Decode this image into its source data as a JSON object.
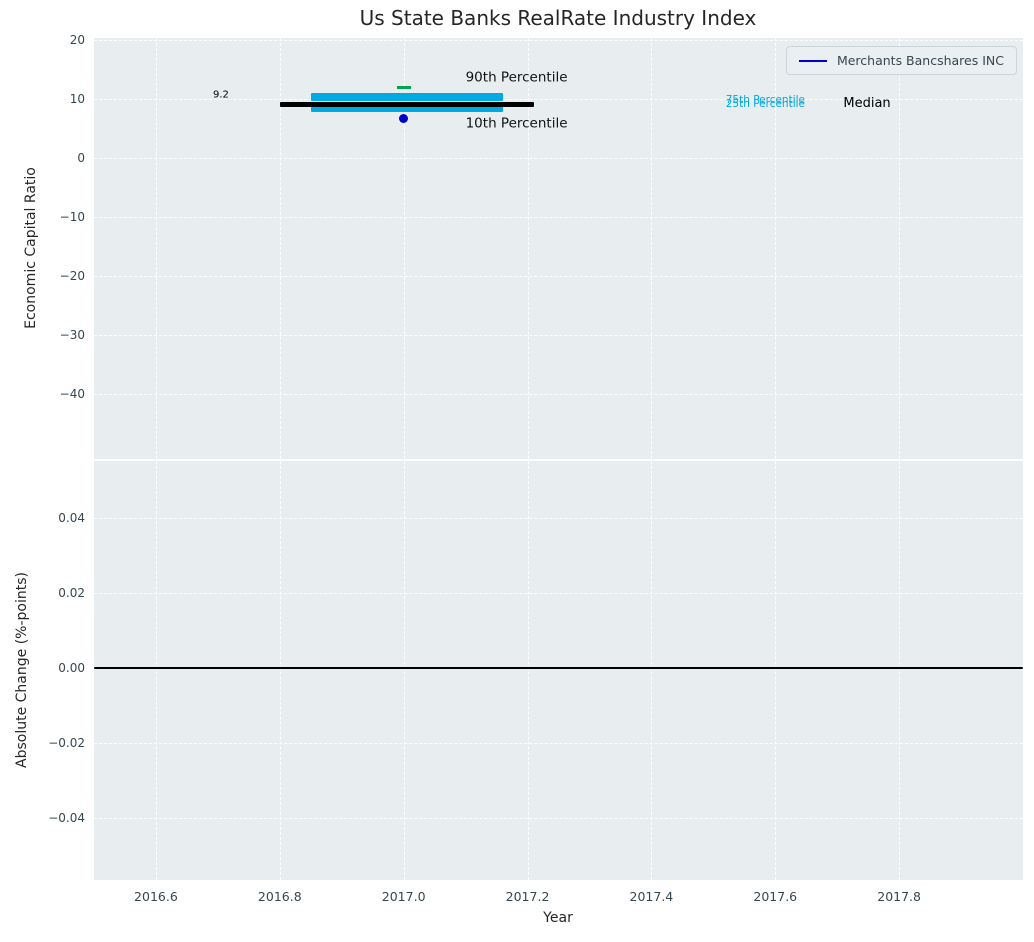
{
  "title": "Us State Banks RealRate Industry Index",
  "legend": {
    "label": "Merchants Bancshares INC",
    "line_color": "#0000cd"
  },
  "colors": {
    "figure_bg": "#ffffff",
    "axes_bg": "#e8edef",
    "grid": "#ffffff",
    "tick_label": "#37474f",
    "title_text": "#262626",
    "percentile_band": "#00a9e0",
    "percentile_90_marker": "#00a550",
    "company_marker": "#0000cd",
    "median_line": "#000000"
  },
  "chart_data": [
    {
      "type": "line",
      "title": "Us State Banks RealRate Industry Index",
      "xlabel": "Year",
      "ylabel": "Economic Capital Ratio",
      "xlim": [
        2016.5,
        2018.0
      ],
      "ylim": [
        -51,
        20.4
      ],
      "grid": true,
      "legend_position": "upper right",
      "show_xtick_labels": false,
      "xticks": [
        {
          "v": 2016.6,
          "label": "2016.6"
        },
        {
          "v": 2016.8,
          "label": "2016.8"
        },
        {
          "v": 2017.0,
          "label": "2017.0"
        },
        {
          "v": 2017.2,
          "label": "2017.2"
        },
        {
          "v": 2017.4,
          "label": "2017.4"
        },
        {
          "v": 2017.6,
          "label": "2017.6"
        },
        {
          "v": 2017.8,
          "label": "2017.8"
        }
      ],
      "yticks": [
        {
          "v": 20,
          "label": "20"
        },
        {
          "v": 10,
          "label": "10"
        },
        {
          "v": 0,
          "label": "0"
        },
        {
          "v": -10,
          "label": "−10"
        },
        {
          "v": -20,
          "label": "−20"
        },
        {
          "v": -30,
          "label": "−30"
        },
        {
          "v": -40,
          "label": "−40"
        }
      ],
      "series": [
        {
          "name": "75th Percentile",
          "style": "thick-hline",
          "color": "#00a9e0",
          "x": [
            2016.85,
            2017.16
          ],
          "y": 10.4,
          "lw": 8
        },
        {
          "name": "25th Percentile",
          "style": "thick-hline",
          "color": "#00a9e0",
          "x": [
            2016.85,
            2017.16
          ],
          "y": 8.6,
          "lw": 8
        },
        {
          "name": "Median",
          "style": "thick-hline",
          "color": "#000000",
          "x": [
            2016.8,
            2017.21
          ],
          "y": 9.2,
          "lw": 5
        },
        {
          "name": "90th Percentile",
          "style": "tick-marker",
          "color": "#00a550",
          "x": 2017.0,
          "y": 12.0,
          "w": 14,
          "lw": 2.5
        },
        {
          "name": "Merchants Bancshares INC",
          "style": "dot-marker",
          "color": "#0000cd",
          "x": 2017.0,
          "y": 6.8,
          "r": 4.5
        }
      ],
      "annotations": [
        {
          "text": "9.2",
          "x": 2016.705,
          "y": 10.7,
          "color": "#000000",
          "size": 10,
          "anchor": "center"
        },
        {
          "text": "90th Percentile",
          "x": 2017.1,
          "y": 13.7,
          "color": "#111111",
          "size": 13.5,
          "anchor": "left"
        },
        {
          "text": "10th Percentile",
          "x": 2017.1,
          "y": 5.8,
          "color": "#111111",
          "size": 13.5,
          "anchor": "left"
        },
        {
          "text": "75th Percentile",
          "x": 2017.52,
          "y": 9.7,
          "color": "#00a9e0",
          "size": 10.5,
          "anchor": "left"
        },
        {
          "text": "25th Percentile",
          "x": 2017.52,
          "y": 9.0,
          "color": "#00a9e0",
          "size": 10.5,
          "anchor": "left"
        },
        {
          "text": "Median",
          "x": 2017.71,
          "y": 9.2,
          "color": "#000000",
          "size": 13,
          "anchor": "left"
        }
      ]
    },
    {
      "type": "line",
      "title": "",
      "xlabel": "Year",
      "ylabel": "Absolute Change (%-points)",
      "xlim": [
        2016.5,
        2018.0
      ],
      "ylim": [
        -0.0565,
        0.0552
      ],
      "grid": true,
      "show_xtick_labels": true,
      "xticks": [
        {
          "v": 2016.6,
          "label": "2016.6"
        },
        {
          "v": 2016.8,
          "label": "2016.8"
        },
        {
          "v": 2017.0,
          "label": "2017.0"
        },
        {
          "v": 2017.2,
          "label": "2017.2"
        },
        {
          "v": 2017.4,
          "label": "2017.4"
        },
        {
          "v": 2017.6,
          "label": "2017.6"
        },
        {
          "v": 2017.8,
          "label": "2017.8"
        }
      ],
      "yticks": [
        {
          "v": 0.04,
          "label": "0.04"
        },
        {
          "v": 0.02,
          "label": "0.02"
        },
        {
          "v": 0.0,
          "label": "0.00"
        },
        {
          "v": -0.02,
          "label": "−0.02"
        },
        {
          "v": -0.04,
          "label": "−0.04"
        }
      ],
      "series": [
        {
          "name": "Zero line",
          "style": "full-hline",
          "color": "#000000",
          "y": 0.0,
          "lw": 1.6
        }
      ],
      "annotations": []
    }
  ]
}
